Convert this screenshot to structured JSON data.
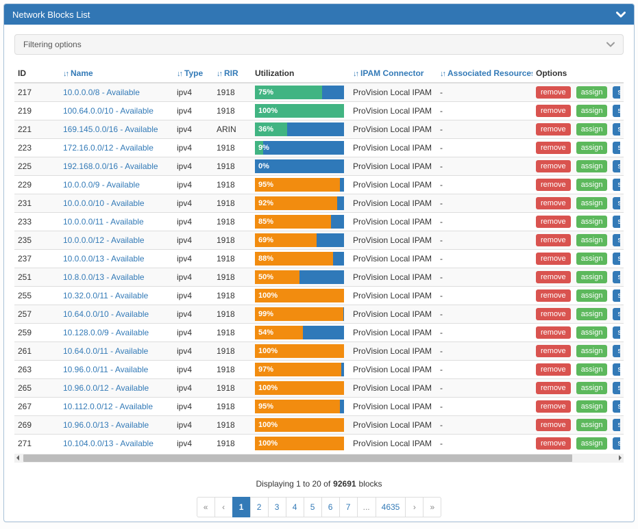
{
  "panel": {
    "title": "Network Blocks List"
  },
  "filter": {
    "label": "Filtering options"
  },
  "icons": {
    "sort_glyph": "↓↑"
  },
  "colors": {
    "header_blue": "#3176b4",
    "bar_bg_blue": "#2f79b9",
    "bar_green": "#41b482",
    "bar_orange": "#f28c0f",
    "danger": "#d9534f",
    "success": "#5cb85c",
    "primary": "#337ab7"
  },
  "table": {
    "columns": [
      {
        "label": "ID",
        "sortable": false
      },
      {
        "label": "Name",
        "sortable": true
      },
      {
        "label": "Type",
        "sortable": true
      },
      {
        "label": "RIR",
        "sortable": true
      },
      {
        "label": "Utilization",
        "sortable": false
      },
      {
        "label": "IPAM Connector",
        "sortable": true
      },
      {
        "label": "Associated Resources",
        "sortable": true
      },
      {
        "label": "Options",
        "sortable": false
      }
    ],
    "action_labels": [
      "remove",
      "assign",
      "sync"
    ],
    "rows": [
      {
        "id": "217",
        "name": "10.0.0.0/8 - Available",
        "type": "ipv4",
        "rir": "1918",
        "utilization": 75,
        "bar_color": "green",
        "ipam": "ProVision Local IPAM",
        "resources": "-"
      },
      {
        "id": "219",
        "name": "100.64.0.0/10 - Available",
        "type": "ipv4",
        "rir": "1918",
        "utilization": 100,
        "bar_color": "green",
        "ipam": "ProVision Local IPAM",
        "resources": "-"
      },
      {
        "id": "221",
        "name": "169.145.0.0/16 - Available",
        "type": "ipv4",
        "rir": "ARIN",
        "utilization": 36,
        "bar_color": "green",
        "ipam": "ProVision Local IPAM",
        "resources": "-"
      },
      {
        "id": "223",
        "name": "172.16.0.0/12 - Available",
        "type": "ipv4",
        "rir": "1918",
        "utilization": 9,
        "bar_color": "green",
        "ipam": "ProVision Local IPAM",
        "resources": "-"
      },
      {
        "id": "225",
        "name": "192.168.0.0/16 - Available",
        "type": "ipv4",
        "rir": "1918",
        "utilization": 0,
        "bar_color": "green",
        "ipam": "ProVision Local IPAM",
        "resources": "-"
      },
      {
        "id": "229",
        "name": "10.0.0.0/9 - Available",
        "type": "ipv4",
        "rir": "1918",
        "utilization": 95,
        "bar_color": "orange",
        "ipam": "ProVision Local IPAM",
        "resources": "-"
      },
      {
        "id": "231",
        "name": "10.0.0.0/10 - Available",
        "type": "ipv4",
        "rir": "1918",
        "utilization": 92,
        "bar_color": "orange",
        "ipam": "ProVision Local IPAM",
        "resources": "-"
      },
      {
        "id": "233",
        "name": "10.0.0.0/11 - Available",
        "type": "ipv4",
        "rir": "1918",
        "utilization": 85,
        "bar_color": "orange",
        "ipam": "ProVision Local IPAM",
        "resources": "-"
      },
      {
        "id": "235",
        "name": "10.0.0.0/12 - Available",
        "type": "ipv4",
        "rir": "1918",
        "utilization": 69,
        "bar_color": "orange",
        "ipam": "ProVision Local IPAM",
        "resources": "-"
      },
      {
        "id": "237",
        "name": "10.0.0.0/13 - Available",
        "type": "ipv4",
        "rir": "1918",
        "utilization": 88,
        "bar_color": "orange",
        "ipam": "ProVision Local IPAM",
        "resources": "-"
      },
      {
        "id": "251",
        "name": "10.8.0.0/13 - Available",
        "type": "ipv4",
        "rir": "1918",
        "utilization": 50,
        "bar_color": "orange",
        "ipam": "ProVision Local IPAM",
        "resources": "-"
      },
      {
        "id": "255",
        "name": "10.32.0.0/11 - Available",
        "type": "ipv4",
        "rir": "1918",
        "utilization": 100,
        "bar_color": "orange",
        "ipam": "ProVision Local IPAM",
        "resources": "-"
      },
      {
        "id": "257",
        "name": "10.64.0.0/10 - Available",
        "type": "ipv4",
        "rir": "1918",
        "utilization": 99,
        "bar_color": "orange",
        "ipam": "ProVision Local IPAM",
        "resources": "-"
      },
      {
        "id": "259",
        "name": "10.128.0.0/9 - Available",
        "type": "ipv4",
        "rir": "1918",
        "utilization": 54,
        "bar_color": "orange",
        "ipam": "ProVision Local IPAM",
        "resources": "-"
      },
      {
        "id": "261",
        "name": "10.64.0.0/11 - Available",
        "type": "ipv4",
        "rir": "1918",
        "utilization": 100,
        "bar_color": "orange",
        "ipam": "ProVision Local IPAM",
        "resources": "-"
      },
      {
        "id": "263",
        "name": "10.96.0.0/11 - Available",
        "type": "ipv4",
        "rir": "1918",
        "utilization": 97,
        "bar_color": "orange",
        "ipam": "ProVision Local IPAM",
        "resources": "-"
      },
      {
        "id": "265",
        "name": "10.96.0.0/12 - Available",
        "type": "ipv4",
        "rir": "1918",
        "utilization": 100,
        "bar_color": "orange",
        "ipam": "ProVision Local IPAM",
        "resources": "-"
      },
      {
        "id": "267",
        "name": "10.112.0.0/12 - Available",
        "type": "ipv4",
        "rir": "1918",
        "utilization": 95,
        "bar_color": "orange",
        "ipam": "ProVision Local IPAM",
        "resources": "-"
      },
      {
        "id": "269",
        "name": "10.96.0.0/13 - Available",
        "type": "ipv4",
        "rir": "1918",
        "utilization": 100,
        "bar_color": "orange",
        "ipam": "ProVision Local IPAM",
        "resources": "-"
      },
      {
        "id": "271",
        "name": "10.104.0.0/13 - Available",
        "type": "ipv4",
        "rir": "1918",
        "utilization": 100,
        "bar_color": "orange",
        "ipam": "ProVision Local IPAM",
        "resources": "-"
      }
    ]
  },
  "status": {
    "prefix": "Displaying 1 to 20 of",
    "total": "92691",
    "suffix": "blocks"
  },
  "pagination": {
    "items": [
      "«",
      "‹",
      "1",
      "2",
      "3",
      "4",
      "5",
      "6",
      "7",
      "...",
      "4635",
      "›",
      "»"
    ],
    "active": "1",
    "muted": [
      "«",
      "‹",
      "...",
      "›",
      "»"
    ]
  }
}
